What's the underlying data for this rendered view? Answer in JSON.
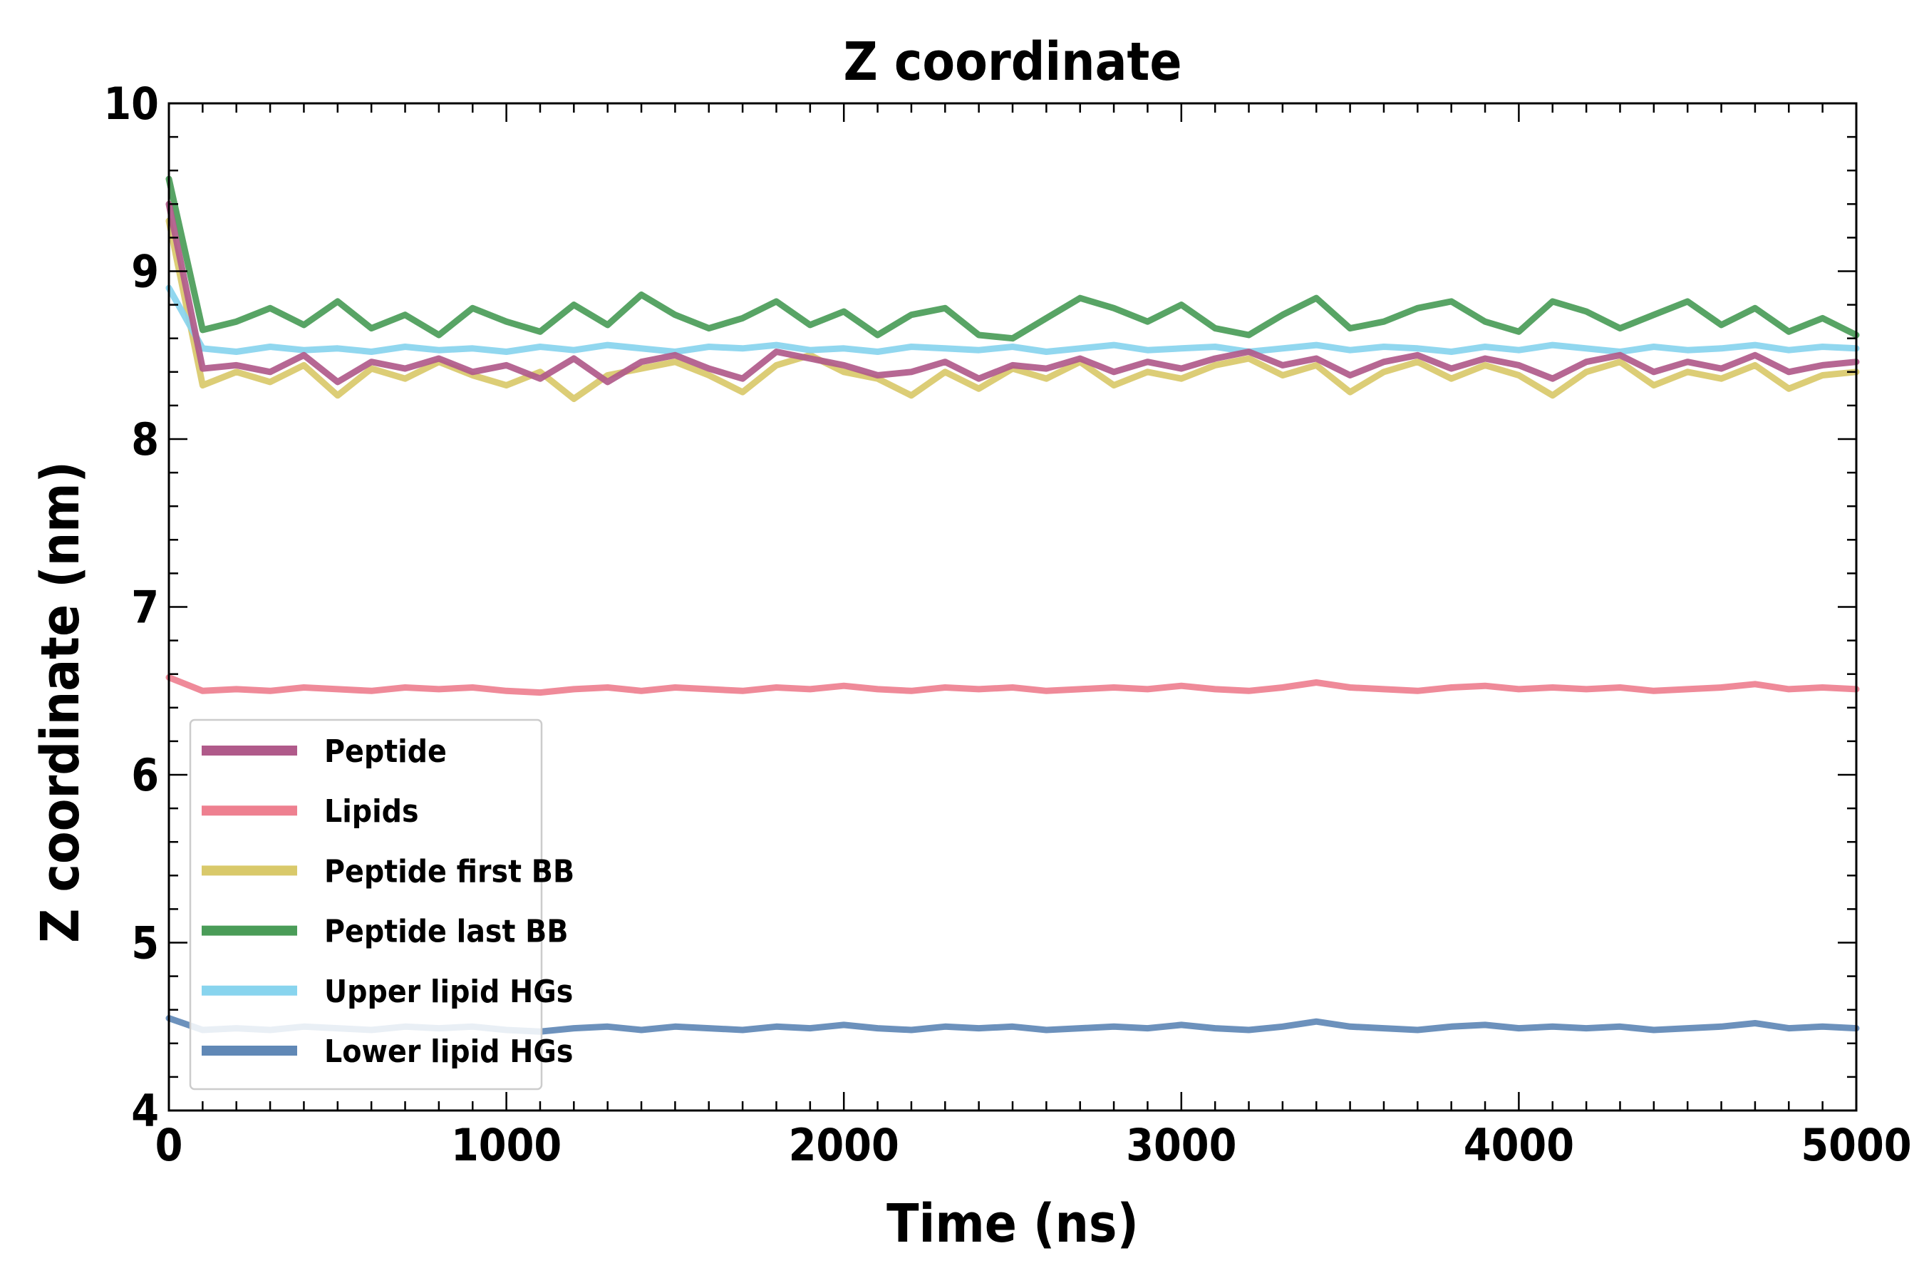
{
  "chart_data": {
    "type": "line",
    "title": "Z coordinate",
    "xlabel": "Time (ns)",
    "ylabel": "Z coordinate (nm)",
    "xlim": [
      0,
      5000
    ],
    "ylim": [
      4,
      10
    ],
    "xticks": [
      "0",
      "1000",
      "2000",
      "3000",
      "4000",
      "5000"
    ],
    "yticks": [
      "4",
      "5",
      "6",
      "7",
      "8",
      "9",
      "10"
    ],
    "grid": false,
    "legend_position": "lower-left",
    "x": [
      0,
      100,
      200,
      300,
      400,
      500,
      600,
      700,
      800,
      900,
      1000,
      1100,
      1200,
      1300,
      1400,
      1500,
      1600,
      1700,
      1800,
      1900,
      2000,
      2100,
      2200,
      2300,
      2400,
      2500,
      2600,
      2700,
      2800,
      2900,
      3000,
      3100,
      3200,
      3300,
      3400,
      3500,
      3600,
      3700,
      3800,
      3900,
      4000,
      4100,
      4200,
      4300,
      4400,
      4500,
      4600,
      4700,
      4800,
      4900,
      5000
    ],
    "series": [
      {
        "name": "Peptide first BB",
        "color": "#d9c96a",
        "values": [
          9.3,
          8.32,
          8.4,
          8.34,
          8.44,
          8.26,
          8.42,
          8.36,
          8.46,
          8.38,
          8.32,
          8.4,
          8.24,
          8.38,
          8.42,
          8.46,
          8.38,
          8.28,
          8.44,
          8.5,
          8.4,
          8.36,
          8.26,
          8.4,
          8.3,
          8.42,
          8.36,
          8.46,
          8.32,
          8.4,
          8.36,
          8.44,
          8.48,
          8.38,
          8.44,
          8.28,
          8.4,
          8.46,
          8.36,
          8.44,
          8.38,
          8.26,
          8.4,
          8.46,
          8.32,
          8.4,
          8.36,
          8.44,
          8.3,
          8.38,
          8.4
        ]
      },
      {
        "name": "Upper lipid HGs",
        "color": "#88d4ee",
        "values": [
          8.9,
          8.54,
          8.52,
          8.55,
          8.53,
          8.54,
          8.52,
          8.55,
          8.53,
          8.54,
          8.52,
          8.55,
          8.53,
          8.56,
          8.54,
          8.52,
          8.55,
          8.54,
          8.56,
          8.53,
          8.54,
          8.52,
          8.55,
          8.54,
          8.53,
          8.55,
          8.52,
          8.54,
          8.56,
          8.53,
          8.54,
          8.55,
          8.52,
          8.54,
          8.56,
          8.53,
          8.55,
          8.54,
          8.52,
          8.55,
          8.53,
          8.56,
          8.54,
          8.52,
          8.55,
          8.53,
          8.54,
          8.56,
          8.53,
          8.55,
          8.54
        ]
      },
      {
        "name": "Peptide last BB",
        "color": "#4a9c58",
        "values": [
          9.55,
          8.65,
          8.7,
          8.78,
          8.68,
          8.82,
          8.66,
          8.74,
          8.62,
          8.78,
          8.7,
          8.64,
          8.8,
          8.68,
          8.86,
          8.74,
          8.66,
          8.72,
          8.82,
          8.68,
          8.76,
          8.62,
          8.74,
          8.78,
          8.62,
          8.6,
          8.72,
          8.84,
          8.78,
          8.7,
          8.8,
          8.66,
          8.62,
          8.74,
          8.84,
          8.66,
          8.7,
          8.78,
          8.82,
          8.7,
          8.64,
          8.82,
          8.76,
          8.66,
          8.74,
          8.82,
          8.68,
          8.78,
          8.64,
          8.72,
          8.62
        ]
      },
      {
        "name": "Peptide",
        "color": "#b05a8a",
        "values": [
          9.4,
          8.42,
          8.44,
          8.4,
          8.5,
          8.34,
          8.46,
          8.42,
          8.48,
          8.4,
          8.44,
          8.36,
          8.48,
          8.34,
          8.46,
          8.5,
          8.42,
          8.36,
          8.52,
          8.48,
          8.44,
          8.38,
          8.4,
          8.46,
          8.36,
          8.44,
          8.42,
          8.48,
          8.4,
          8.46,
          8.42,
          8.48,
          8.52,
          8.44,
          8.48,
          8.38,
          8.46,
          8.5,
          8.42,
          8.48,
          8.44,
          8.36,
          8.46,
          8.5,
          8.4,
          8.46,
          8.42,
          8.5,
          8.4,
          8.44,
          8.46
        ]
      },
      {
        "name": "Lipids",
        "color": "#ee8090",
        "values": [
          6.58,
          6.5,
          6.51,
          6.5,
          6.52,
          6.51,
          6.5,
          6.52,
          6.51,
          6.52,
          6.5,
          6.49,
          6.51,
          6.52,
          6.5,
          6.52,
          6.51,
          6.5,
          6.52,
          6.51,
          6.53,
          6.51,
          6.5,
          6.52,
          6.51,
          6.52,
          6.5,
          6.51,
          6.52,
          6.51,
          6.53,
          6.51,
          6.5,
          6.52,
          6.55,
          6.52,
          6.51,
          6.5,
          6.52,
          6.53,
          6.51,
          6.52,
          6.51,
          6.52,
          6.5,
          6.51,
          6.52,
          6.54,
          6.51,
          6.52,
          6.51
        ]
      },
      {
        "name": "Lower lipid HGs",
        "color": "#6088b6",
        "values": [
          4.55,
          4.48,
          4.49,
          4.48,
          4.5,
          4.49,
          4.48,
          4.5,
          4.49,
          4.5,
          4.48,
          4.47,
          4.49,
          4.5,
          4.48,
          4.5,
          4.49,
          4.48,
          4.5,
          4.49,
          4.51,
          4.49,
          4.48,
          4.5,
          4.49,
          4.5,
          4.48,
          4.49,
          4.5,
          4.49,
          4.51,
          4.49,
          4.48,
          4.5,
          4.53,
          4.5,
          4.49,
          4.48,
          4.5,
          4.51,
          4.49,
          4.5,
          4.49,
          4.5,
          4.48,
          4.49,
          4.5,
          4.52,
          4.49,
          4.5,
          4.49
        ]
      }
    ],
    "legend": [
      "Peptide",
      "Lipids",
      "Peptide first BB",
      "Peptide last BB",
      "Upper lipid HGs",
      "Lower lipid HGs"
    ]
  }
}
